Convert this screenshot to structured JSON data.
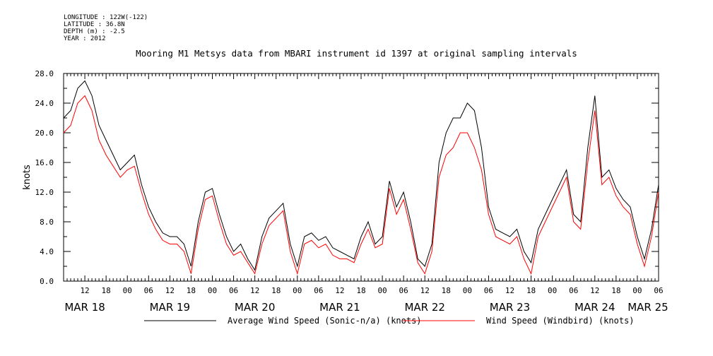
{
  "header": {
    "longitude": "LONGITUDE : 122W(-122)",
    "latitude": "LATITUDE : 36.8N",
    "depth": "DEPTH (m) : -2.5",
    "year": "YEAR : 2012"
  },
  "chart_data": {
    "type": "line",
    "title": "Mooring M1 Metsys data from MBARI instrument id 1397 at original sampling intervals",
    "ylabel": "knots",
    "xlabel": "",
    "ylim": [
      0,
      28
    ],
    "xlim_hours": [
      6,
      174
    ],
    "yticks": [
      "0.0",
      "4.0",
      "8.0",
      "12.0",
      "16.0",
      "20.0",
      "24.0",
      "28.0"
    ],
    "xticks": [
      {
        "h": 12,
        "label": "12"
      },
      {
        "h": 18,
        "label": "18"
      },
      {
        "h": 24,
        "label": "00"
      },
      {
        "h": 30,
        "label": "06"
      },
      {
        "h": 36,
        "label": "12"
      },
      {
        "h": 42,
        "label": "18"
      },
      {
        "h": 48,
        "label": "00"
      },
      {
        "h": 54,
        "label": "06"
      },
      {
        "h": 60,
        "label": "12"
      },
      {
        "h": 66,
        "label": "18"
      },
      {
        "h": 72,
        "label": "00"
      },
      {
        "h": 78,
        "label": "06"
      },
      {
        "h": 84,
        "label": "12"
      },
      {
        "h": 90,
        "label": "18"
      },
      {
        "h": 96,
        "label": "00"
      },
      {
        "h": 102,
        "label": "06"
      },
      {
        "h": 108,
        "label": "12"
      },
      {
        "h": 114,
        "label": "18"
      },
      {
        "h": 120,
        "label": "00"
      },
      {
        "h": 126,
        "label": "06"
      },
      {
        "h": 132,
        "label": "12"
      },
      {
        "h": 138,
        "label": "18"
      },
      {
        "h": 144,
        "label": "00"
      },
      {
        "h": 150,
        "label": "06"
      },
      {
        "h": 156,
        "label": "12"
      },
      {
        "h": 162,
        "label": "18"
      },
      {
        "h": 168,
        "label": "00"
      },
      {
        "h": 174,
        "label": "06"
      }
    ],
    "days": [
      {
        "h": 12,
        "label": "MAR 18"
      },
      {
        "h": 36,
        "label": "MAR 19"
      },
      {
        "h": 60,
        "label": "MAR 20"
      },
      {
        "h": 84,
        "label": "MAR 21"
      },
      {
        "h": 108,
        "label": "MAR 22"
      },
      {
        "h": 132,
        "label": "MAR 23"
      },
      {
        "h": 156,
        "label": "MAR 24"
      },
      {
        "h": 171,
        "label": "MAR 25"
      }
    ],
    "series": [
      {
        "name": "Average Wind Speed (Sonic-n/a) (knots)",
        "color": "#000000",
        "hours": [
          6,
          8,
          10,
          12,
          14,
          16,
          18,
          20,
          22,
          24,
          26,
          28,
          30,
          32,
          34,
          36,
          38,
          40,
          42,
          44,
          46,
          48,
          50,
          52,
          54,
          56,
          58,
          60,
          62,
          64,
          66,
          68,
          70,
          72,
          74,
          76,
          78,
          80,
          82,
          84,
          86,
          88,
          90,
          92,
          94,
          96,
          98,
          100,
          102,
          104,
          106,
          108,
          110,
          112,
          114,
          116,
          118,
          120,
          122,
          124,
          126,
          128,
          130,
          132,
          134,
          136,
          138,
          140,
          142,
          144,
          146,
          148,
          150,
          152,
          154,
          156,
          158,
          160,
          162,
          164,
          166,
          168,
          170,
          172,
          174
        ],
        "values": [
          22,
          23,
          26,
          27,
          25,
          21,
          19,
          17,
          15,
          16,
          17,
          13,
          10,
          8,
          6.5,
          6,
          6,
          5,
          2,
          8,
          12,
          12.5,
          9,
          6,
          4,
          5,
          3,
          1.5,
          6,
          8.5,
          9.5,
          10.5,
          5,
          2,
          6,
          6.5,
          5.5,
          6,
          4.5,
          4,
          3.5,
          3,
          6,
          8,
          5,
          6,
          13.5,
          10,
          12,
          8,
          3,
          2,
          5,
          16,
          20,
          22,
          22,
          24,
          23,
          18,
          10,
          7,
          6.5,
          6,
          7,
          4,
          2.5,
          7,
          9,
          11,
          13,
          15,
          9,
          8,
          18,
          25,
          14,
          15,
          12.5,
          11,
          10,
          6,
          3,
          7,
          13
        ]
      },
      {
        "name": "Wind Speed (Windbird) (knots)",
        "color": "#ff0000",
        "hours": [
          6,
          8,
          10,
          12,
          14,
          16,
          18,
          20,
          22,
          24,
          26,
          28,
          30,
          32,
          34,
          36,
          38,
          40,
          42,
          44,
          46,
          48,
          50,
          52,
          54,
          56,
          58,
          60,
          62,
          64,
          66,
          68,
          70,
          72,
          74,
          76,
          78,
          80,
          82,
          84,
          86,
          88,
          90,
          92,
          94,
          96,
          98,
          100,
          102,
          104,
          106,
          108,
          110,
          112,
          114,
          116,
          118,
          120,
          122,
          124,
          126,
          128,
          130,
          132,
          134,
          136,
          138,
          140,
          142,
          144,
          146,
          148,
          150,
          152,
          154,
          156,
          158,
          160,
          162,
          164,
          166,
          168,
          170,
          172,
          174
        ],
        "values": [
          20,
          21,
          24,
          25,
          23,
          19,
          17,
          15.5,
          14,
          15,
          15.5,
          12,
          9,
          7,
          5.5,
          5,
          5,
          4,
          1,
          7,
          11,
          11.5,
          8,
          5,
          3.5,
          4,
          2.5,
          1,
          5,
          7.5,
          8.5,
          9.5,
          4,
          1,
          5,
          5.5,
          4.5,
          5,
          3.5,
          3,
          3,
          2.5,
          5,
          7,
          4.5,
          5,
          12.5,
          9,
          11,
          7,
          2.5,
          1,
          4,
          14,
          17,
          18,
          20,
          20,
          18,
          15,
          9,
          6,
          5.5,
          5,
          6,
          3,
          1,
          6,
          8,
          10,
          12,
          14,
          8,
          7,
          16,
          23,
          13,
          14,
          11.5,
          10,
          9,
          5,
          2,
          6,
          12
        ]
      }
    ]
  }
}
